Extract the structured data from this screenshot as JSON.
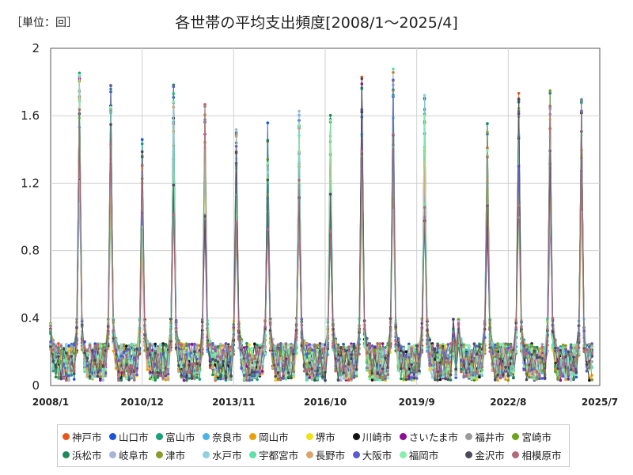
{
  "chart_data": {
    "type": "line",
    "title": "各世帯の平均支出頻度[2008/1～2025/4]",
    "unit_label": "［単位：回］",
    "x_ticks": [
      "2008/1",
      "2010/12",
      "2013/11",
      "2016/10",
      "2019/9",
      "2022/8",
      "2025/7"
    ],
    "x_range": [
      "2008/1",
      "2025/7"
    ],
    "y_ticks": [
      "0",
      "0.4",
      "0.8",
      "1.2",
      "1.6",
      "2"
    ],
    "ylim": [
      0,
      2
    ],
    "grid": true,
    "legend_position": "bottom",
    "peaks": [
      {
        "date": "2008/12",
        "max": 1.89
      },
      {
        "date": "2009/12",
        "max": 1.8
      },
      {
        "date": "2010/12",
        "max": 1.47
      },
      {
        "date": "2011/12",
        "max": 1.79
      },
      {
        "date": "2012/12",
        "max": 1.69
      },
      {
        "date": "2013/12",
        "max": 1.52
      },
      {
        "date": "2014/12",
        "max": 1.56
      },
      {
        "date": "2015/12",
        "max": 1.65
      },
      {
        "date": "2016/12",
        "max": 1.61
      },
      {
        "date": "2017/12",
        "max": 1.83
      },
      {
        "date": "2018/12",
        "max": 1.88
      },
      {
        "date": "2019/12",
        "max": 1.74
      },
      {
        "date": "2021/12",
        "max": 1.56
      },
      {
        "date": "2022/12",
        "max": 1.74
      },
      {
        "date": "2023/12",
        "max": 1.75
      },
      {
        "date": "2024/12",
        "max": 1.78
      }
    ],
    "series": [
      {
        "name": "神戸市",
        "color": "#e8541c"
      },
      {
        "name": "山口市",
        "color": "#1a55d6"
      },
      {
        "name": "富山市",
        "color": "#17a07a"
      },
      {
        "name": "奈良市",
        "color": "#4db3e6"
      },
      {
        "name": "岡山市",
        "color": "#e8a00c"
      },
      {
        "name": "堺市",
        "color": "#f0e015"
      },
      {
        "name": "川崎市",
        "color": "#111111"
      },
      {
        "name": "さいたま市",
        "color": "#8e0e98"
      },
      {
        "name": "福井市",
        "color": "#9a9a9a"
      },
      {
        "name": "宮崎市",
        "color": "#6aa31e"
      },
      {
        "name": "浜松市",
        "color": "#1d8a5c"
      },
      {
        "name": "岐阜市",
        "color": "#a9b4d8"
      },
      {
        "name": "津市",
        "color": "#8d9a2a"
      },
      {
        "name": "水戸市",
        "color": "#8fd0e0"
      },
      {
        "name": "宇都宮市",
        "color": "#5ee0a8"
      },
      {
        "name": "長野市",
        "color": "#d9a76b"
      },
      {
        "name": "大阪市",
        "color": "#5a5ad0"
      },
      {
        "name": "福岡市",
        "color": "#8cecb0"
      },
      {
        "name": "金沢市",
        "color": "#4a4a5a"
      },
      {
        "name": "相模原市",
        "color": "#b06a7a"
      }
    ]
  }
}
